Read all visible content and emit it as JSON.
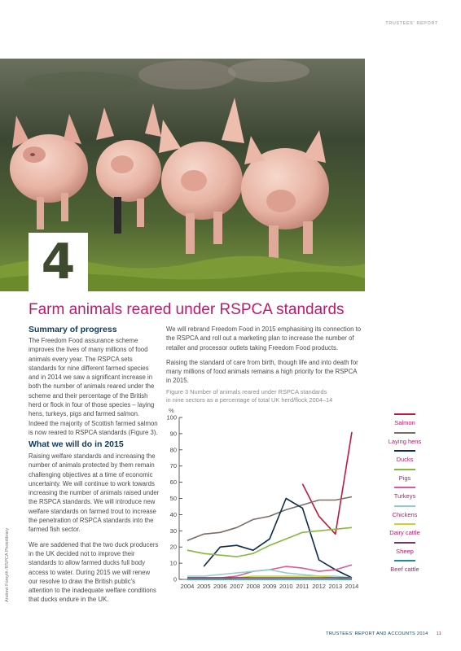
{
  "header": {
    "section_label": "TRUSTEES' REPORT"
  },
  "chapter": {
    "number": "4",
    "title": "Farm animals reared under RSPCA standards"
  },
  "photo": {
    "credit": "Andrew Forsyth /RSPCA Photolibrary"
  },
  "summary": {
    "heading": "Summary of progress",
    "paragraph": "The Freedom Food assurance scheme improves the lives of many millions of food animals every year. The RSPCA sets standards for nine different farmed species and in 2014 we saw a significant increase in both the number of animals reared under the scheme and their percentage of the British herd or flock in four of those species – laying hens, turkeys, pigs and farmed salmon. Indeed the majority of Scottish farmed salmon is now reared to RSPCA standards (Figure 3)."
  },
  "plans": {
    "heading": "What we will do in 2015",
    "paragraph1": "Raising welfare standards and increasing the number of animals protected by them remain challenging objectives at a time of economic uncertainty. We will continue to work towards increasing the number of animals raised under the RSPCA standards. We will introduce new welfare standards on farmed trout to increase the penetration of RSPCA standards into the farmed fish sector.",
    "paragraph2": "We are saddened that the two duck producers in the UK decided not to improve their standards to allow farmed ducks full body access to water. During 2015 we will renew our resolve to draw the British public's attention to the inadequate welfare conditions that ducks endure in the UK."
  },
  "right_column": {
    "paragraph1": "We will rebrand Freedom Food in 2015 emphasising its connection to the RSPCA and roll out a marketing plan to increase the number of retailer and processor outlets taking Freedom Food products.",
    "paragraph2": "Raising the standard of care from birth, though life and into death for many millions of food animals remains a high priority for the RSPCA in 2015."
  },
  "figure": {
    "caption_line1": "Figure 3 Number of animals reared under RSPCA standards",
    "caption_line2": "in nine sectors as a percentage of total UK herd/flock 2004–14"
  },
  "chart_data": {
    "type": "line",
    "title": "",
    "ylabel": "%",
    "xlabel": "",
    "ylim": [
      0,
      100
    ],
    "yticks": [
      0,
      10,
      20,
      30,
      40,
      50,
      60,
      70,
      80,
      90,
      100
    ],
    "x": [
      "2004",
      "2005",
      "2006",
      "2007",
      "2008",
      "2009",
      "2010",
      "2011",
      "2012",
      "2013",
      "2014"
    ],
    "legend_position": "right",
    "series": [
      {
        "name": "Salmon",
        "color": "#c0183c",
        "values": [
          null,
          null,
          null,
          null,
          null,
          null,
          null,
          59,
          39,
          28,
          91
        ]
      },
      {
        "name": "Laying hens",
        "color": "#7a6e66",
        "values": [
          24,
          28,
          29,
          32,
          37,
          39,
          43,
          46,
          49,
          49,
          51
        ]
      },
      {
        "name": "Ducks",
        "color": "#0e2d4a",
        "values": [
          null,
          8,
          20,
          21,
          18,
          25,
          50,
          44,
          12,
          6,
          1
        ]
      },
      {
        "name": "Pigs",
        "color": "#86b83a",
        "values": [
          18,
          16,
          15,
          14,
          16,
          21,
          25,
          29,
          30,
          31,
          32
        ]
      },
      {
        "name": "Turkeys",
        "color": "#d85a9c",
        "values": [
          1,
          1,
          1,
          2,
          5,
          6,
          8,
          7,
          5,
          6,
          9
        ]
      },
      {
        "name": "Chickens",
        "color": "#8ecfc9",
        "values": [
          2,
          2,
          3,
          4,
          5,
          6,
          4,
          3,
          2,
          2,
          1
        ]
      },
      {
        "name": "Dairy cattle",
        "color": "#c8d62a",
        "values": [
          0,
          0,
          0,
          1,
          2,
          2,
          2,
          2,
          2,
          1,
          0
        ]
      },
      {
        "name": "Sheep",
        "color": "#6d3a6e",
        "values": [
          1,
          1,
          1,
          1,
          1,
          1,
          1,
          1,
          1,
          1,
          1
        ]
      },
      {
        "name": "Beef cattle",
        "color": "#1a8e99",
        "values": [
          0,
          0,
          0,
          0,
          0,
          0,
          0,
          0,
          0,
          0,
          0
        ]
      }
    ]
  },
  "footer": {
    "text": "TRUSTEES' REPORT AND ACCOUNTS 2014",
    "page": "11"
  }
}
